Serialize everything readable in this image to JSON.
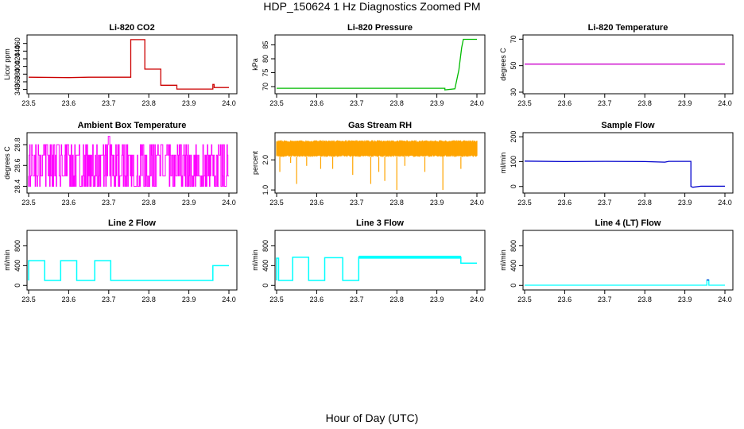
{
  "figure": {
    "title": "HDP_150624  1 Hz Diagnostics Zoomed PM",
    "xlabel": "Hour of Day (UTC)"
  },
  "chart_data": [
    {
      "type": "line",
      "title": "Li-820 CO2",
      "xlabel": "",
      "ylabel": "Licor ppm",
      "xlim": [
        23.5,
        24.0
      ],
      "ylim": [
        333,
        478
      ],
      "xticks": [
        "23.5",
        "23.6",
        "23.7",
        "23.8",
        "23.9",
        "24.0"
      ],
      "yticks": [
        "340",
        "360",
        "380",
        "400",
        "420",
        "440",
        "460"
      ],
      "grid": false,
      "color": "#cc0000",
      "series": [
        {
          "x": [
            23.5,
            23.6,
            23.65,
            23.7,
            23.755,
            23.755,
            23.79,
            23.79,
            23.83,
            23.83,
            23.87,
            23.87,
            23.96,
            23.96,
            23.963,
            23.963,
            24.0
          ],
          "y": [
            372,
            371,
            372,
            372,
            372,
            470,
            470,
            393,
            393,
            351,
            351,
            341,
            341,
            353,
            353,
            345,
            345
          ]
        }
      ]
    },
    {
      "type": "line",
      "title": "Li-820 Pressure",
      "xlabel": "",
      "ylabel": "kPa",
      "xlim": [
        23.5,
        24.0
      ],
      "ylim": [
        68,
        88
      ],
      "xticks": [
        "23.5",
        "23.6",
        "23.7",
        "23.8",
        "23.9",
        "24.0"
      ],
      "yticks": [
        "70",
        "75",
        "80",
        "85"
      ],
      "grid": false,
      "color": "#00bb00",
      "series": [
        {
          "x": [
            23.5,
            23.6,
            23.7,
            23.8,
            23.9,
            23.92,
            23.92,
            23.945,
            23.955,
            23.962,
            23.966,
            24.0
          ],
          "y": [
            69.4,
            69.4,
            69.4,
            69.4,
            69.4,
            69.4,
            68.8,
            69.2,
            76.0,
            84.0,
            87.0,
            87.0
          ]
        }
      ]
    },
    {
      "type": "line",
      "title": "Li-820 Temperature",
      "xlabel": "",
      "ylabel": "degrees C",
      "xlim": [
        23.5,
        24.0
      ],
      "ylim": [
        30,
        72
      ],
      "xticks": [
        "23.5",
        "23.6",
        "23.7",
        "23.8",
        "23.9",
        "24.0"
      ],
      "yticks": [
        "30",
        "50",
        "70"
      ],
      "grid": false,
      "color": "#cc00cc",
      "series": [
        {
          "x": [
            23.5,
            24.0
          ],
          "y": [
            51.2,
            51.2
          ]
        }
      ]
    },
    {
      "type": "line",
      "title": "Ambient Box Temperature",
      "xlabel": "",
      "ylabel": "degrees C",
      "xlim": [
        23.5,
        24.0
      ],
      "ylim": [
        28.35,
        28.9
      ],
      "xticks": [
        "23.5",
        "23.6",
        "23.7",
        "23.8",
        "23.9",
        "24.0"
      ],
      "yticks": [
        "28.4",
        "28.6",
        "28.8"
      ],
      "grid": false,
      "color": "#ff00ff",
      "series": [
        {
          "x": [
            23.5,
            23.52,
            23.54,
            23.56,
            23.58,
            23.6,
            23.62,
            23.64,
            23.66,
            23.68,
            23.7,
            23.72,
            23.74,
            23.76,
            23.78,
            23.8,
            23.82,
            23.84,
            23.86,
            23.88,
            23.9,
            23.92,
            23.94,
            23.96,
            23.98,
            24.0
          ],
          "y_high": [
            28.8,
            28.8,
            28.8,
            28.8,
            28.8,
            28.8,
            28.8,
            28.8,
            28.8,
            28.8,
            28.88,
            28.8,
            28.8,
            28.8,
            28.8,
            28.8,
            28.8,
            28.8,
            28.8,
            28.8,
            28.8,
            28.8,
            28.8,
            28.8,
            28.8,
            28.8
          ],
          "y_mid_high": [
            28.7,
            28.7,
            28.7,
            28.7,
            28.7,
            28.7,
            28.7,
            28.7,
            28.7,
            28.7,
            28.7,
            28.7,
            28.7,
            28.7,
            28.7,
            28.7,
            28.7,
            28.7,
            28.7,
            28.7,
            28.7,
            28.7,
            28.7,
            28.7,
            28.7,
            28.7
          ],
          "y_mid_low": [
            28.5,
            28.5,
            28.5,
            28.5,
            28.5,
            28.5,
            28.5,
            28.5,
            28.5,
            28.5,
            28.5,
            28.5,
            28.5,
            28.5,
            28.5,
            28.5,
            28.5,
            28.5,
            28.5,
            28.5,
            28.5,
            28.5,
            28.5,
            28.5,
            28.5,
            28.5
          ],
          "y_low": [
            28.4,
            28.4,
            28.4,
            28.4,
            28.4,
            28.4,
            28.4,
            28.4,
            28.4,
            28.4,
            28.4,
            28.4,
            28.4,
            28.4,
            28.4,
            28.4,
            28.4,
            28.4,
            28.4,
            28.4,
            28.4,
            28.4,
            28.4,
            28.4,
            28.4,
            28.4
          ]
        }
      ]
    },
    {
      "type": "scatter",
      "title": "Gas Stream RH",
      "xlabel": "",
      "ylabel": "percent",
      "xlim": [
        23.5,
        24.0
      ],
      "ylim": [
        0.95,
        2.85
      ],
      "xticks": [
        "23.5",
        "23.6",
        "23.7",
        "23.8",
        "23.9",
        "24.0"
      ],
      "yticks": [
        "1.0",
        "2.0"
      ],
      "grid": false,
      "color": "#ffa500",
      "series": [
        {
          "band_low": 2.1,
          "band_high": 2.65,
          "dips_x": [
            23.508,
            23.535,
            23.55,
            23.575,
            23.61,
            23.64,
            23.69,
            23.735,
            23.755,
            23.77,
            23.8,
            23.82,
            23.87,
            23.915,
            23.96
          ],
          "dips_y": [
            1.6,
            1.9,
            1.2,
            1.8,
            1.7,
            1.7,
            1.5,
            1.2,
            1.6,
            1.3,
            1.0,
            1.8,
            1.6,
            1.0,
            1.7
          ]
        }
      ]
    },
    {
      "type": "line",
      "title": "Sample Flow",
      "xlabel": "",
      "ylabel": "ml/min",
      "xlim": [
        23.5,
        24.0
      ],
      "ylim": [
        -20,
        210
      ],
      "xticks": [
        "23.5",
        "23.6",
        "23.7",
        "23.8",
        "23.9",
        "24.0"
      ],
      "yticks": [
        "0",
        "100",
        "200"
      ],
      "grid": false,
      "color": "#0000cc",
      "series": [
        {
          "x": [
            23.5,
            23.6,
            23.7,
            23.8,
            23.85,
            23.86,
            23.9,
            23.915,
            23.915,
            23.92,
            23.94,
            24.0
          ],
          "y": [
            102,
            100,
            101,
            100,
            98,
            101,
            101,
            101,
            0,
            -3,
            1,
            1
          ]
        }
      ]
    },
    {
      "type": "line",
      "title": "Line 2 Flow",
      "xlabel": "",
      "ylabel": "ml/min",
      "xlim": [
        23.5,
        24.0
      ],
      "ylim": [
        -60,
        1080
      ],
      "xticks": [
        "23.5",
        "23.6",
        "23.7",
        "23.8",
        "23.9",
        "24.0"
      ],
      "yticks": [
        "0",
        "400",
        "800"
      ],
      "grid": false,
      "color": "#00ffff",
      "series": [
        {
          "x": [
            23.5,
            23.5,
            23.54,
            23.54,
            23.58,
            23.58,
            23.62,
            23.62,
            23.665,
            23.665,
            23.705,
            23.705,
            23.96,
            23.96,
            24.0
          ],
          "y": [
            100,
            500,
            500,
            100,
            100,
            500,
            500,
            100,
            100,
            500,
            500,
            100,
            100,
            400,
            400
          ]
        }
      ]
    },
    {
      "type": "line",
      "title": "Line 3 Flow",
      "xlabel": "",
      "ylabel": "ml/min",
      "xlim": [
        23.5,
        24.0
      ],
      "ylim": [
        -60,
        1080
      ],
      "xticks": [
        "23.5",
        "23.6",
        "23.7",
        "23.8",
        "23.9",
        "24.0"
      ],
      "yticks": [
        "0",
        "400",
        "800"
      ],
      "grid": false,
      "color": "#00ffff",
      "series": [
        {
          "x": [
            23.5,
            23.5,
            23.505,
            23.505,
            23.54,
            23.54,
            23.58,
            23.58,
            23.62,
            23.62,
            23.665,
            23.665,
            23.705,
            23.705,
            23.96,
            23.96,
            24.0
          ],
          "y": [
            100,
            550,
            550,
            100,
            100,
            570,
            570,
            100,
            100,
            560,
            560,
            100,
            100,
            570,
            570,
            450,
            450
          ]
        }
      ]
    },
    {
      "type": "line",
      "title": "Line 4 (LT) Flow",
      "xlabel": "",
      "ylabel": "ml/min",
      "xlim": [
        23.5,
        24.0
      ],
      "ylim": [
        -60,
        1080
      ],
      "xticks": [
        "23.5",
        "23.6",
        "23.7",
        "23.8",
        "23.9",
        "24.0"
      ],
      "yticks": [
        "0",
        "400",
        "800"
      ],
      "grid": false,
      "color": "#00ffff",
      "series": [
        {
          "x": [
            23.5,
            23.7,
            23.9,
            23.955,
            23.955,
            23.96,
            23.96,
            24.0
          ],
          "y": [
            5,
            5,
            5,
            5,
            110,
            110,
            5,
            5
          ]
        },
        {
          "x": [
            23.955,
            23.96
          ],
          "y": [
            110,
            110
          ],
          "color": "#0000cc"
        }
      ]
    }
  ]
}
